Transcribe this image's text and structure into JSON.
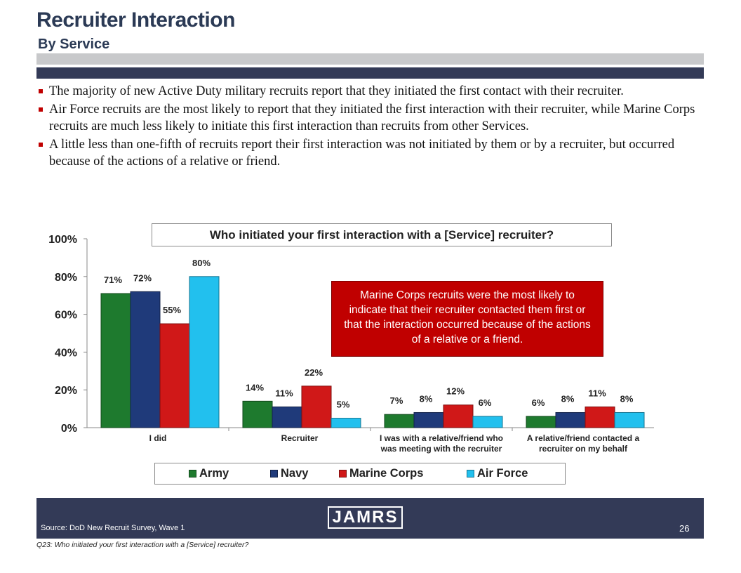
{
  "header": {
    "title": "Recruiter Interaction",
    "subtitle": "By Service"
  },
  "bullets": [
    "The majority of new Active Duty military recruits report that they initiated the first contact with their recruiter.",
    "Air Force recruits are the most likely to report that they initiated the first interaction with their recruiter, while Marine Corps recruits are much less likely to initiate this first interaction than recruits from other Services.",
    "A little less than one-fifth of recruits report their first interaction was not initiated by them or by a recruiter, but occurred because of the actions of a relative or friend."
  ],
  "callout": "Marine Corps recruits were the most likely to indicate that their recruiter contacted them first or that the interaction occurred because of the actions of a relative or a friend.",
  "footer": {
    "logo": "JAMRS",
    "source": "Source:  DoD New Recruit Survey, Wave 1",
    "page_number": "26",
    "question": "Q23: Who initiated your first interaction with a [Service] recruiter?"
  },
  "chart_data": {
    "type": "bar",
    "title": "Who initiated your first interaction with a [Service] recruiter?",
    "categories": [
      [
        "I did"
      ],
      [
        "Recruiter"
      ],
      [
        "I was with a relative/friend who",
        "was meeting with the recruiter"
      ],
      [
        "A relative/friend contacted a",
        "recruiter on my behalf"
      ]
    ],
    "series": [
      {
        "name": "Army",
        "color": "#1e7a2e",
        "values": [
          71,
          14,
          7,
          6
        ]
      },
      {
        "name": "Navy",
        "color": "#1f3a7a",
        "values": [
          72,
          11,
          8,
          8
        ]
      },
      {
        "name": "Marine Corps",
        "color": "#d01818",
        "values": [
          55,
          22,
          12,
          11
        ]
      },
      {
        "name": "Air Force",
        "color": "#22c0ee",
        "values": [
          80,
          5,
          6,
          8
        ]
      }
    ],
    "y_ticks": [
      "0%",
      "20%",
      "40%",
      "60%",
      "80%",
      "100%"
    ],
    "ylim": [
      0,
      100
    ],
    "value_suffix": "%",
    "legend_position": "bottom",
    "grid": false
  }
}
